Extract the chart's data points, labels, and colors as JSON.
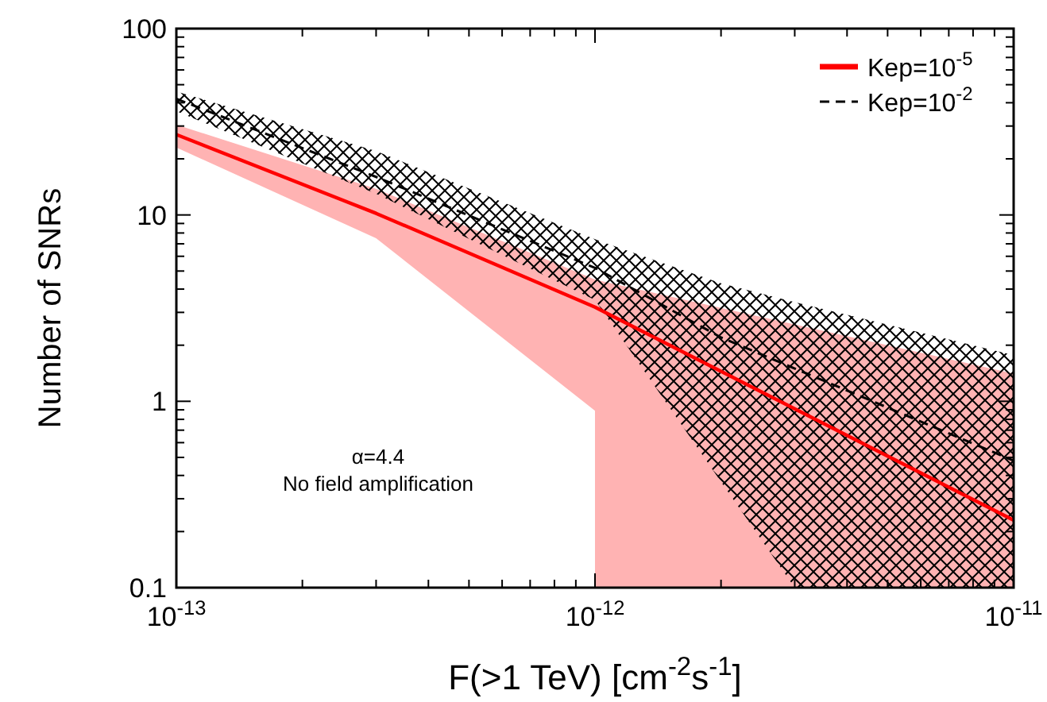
{
  "chart_data": {
    "type": "line",
    "xlabel": "F(>1 TeV) [cm$^{-2}$s$^{-1}$]",
    "ylabel": "Number of SNRs",
    "log": "xy",
    "grid": false,
    "legend": "top right",
    "xlim": [
      1e-13,
      1e-11
    ],
    "ylim": [
      0.1,
      100
    ],
    "xticks": [
      {
        "value": 1e-13,
        "label": "10$^{-13}$"
      },
      {
        "value": 2e-13,
        "label": null
      },
      {
        "value": 3e-13,
        "label": null
      },
      {
        "value": 4e-13,
        "label": null
      },
      {
        "value": 5e-13,
        "label": null
      },
      {
        "value": 6e-13,
        "label": null
      },
      {
        "value": 7e-13,
        "label": null
      },
      {
        "value": 8e-13,
        "label": null
      },
      {
        "value": 9e-13,
        "label": null
      },
      {
        "value": 1e-12,
        "label": "10$^{-12}$"
      },
      {
        "value": 2e-12,
        "label": null
      },
      {
        "value": 3e-12,
        "label": null
      },
      {
        "value": 4e-12,
        "label": null
      },
      {
        "value": 5e-12,
        "label": null
      },
      {
        "value": 6e-12,
        "label": null
      },
      {
        "value": 7e-12,
        "label": null
      },
      {
        "value": 8e-12,
        "label": null
      },
      {
        "value": 9e-12,
        "label": null
      },
      {
        "value": 1e-11,
        "label": "10$^{-11}$"
      }
    ],
    "yticks": [
      0.1,
      {
        "value": 0.2,
        "label": null
      },
      {
        "value": 0.3,
        "label": null
      },
      {
        "value": 0.4,
        "label": null
      },
      {
        "value": 0.5,
        "label": null
      },
      {
        "value": 0.6,
        "label": null
      },
      {
        "value": 0.7,
        "label": null
      },
      {
        "value": 0.8,
        "label": null
      },
      {
        "value": 0.9,
        "label": null
      },
      1,
      {
        "value": 2,
        "label": null
      },
      {
        "value": 3,
        "label": null
      },
      {
        "value": 4,
        "label": null
      },
      {
        "value": 5,
        "label": null
      },
      {
        "value": 6,
        "label": null
      },
      {
        "value": 7,
        "label": null
      },
      {
        "value": 8,
        "label": null
      },
      {
        "value": 9,
        "label": null
      },
      10,
      {
        "value": 20,
        "label": null
      },
      {
        "value": 30,
        "label": null
      },
      {
        "value": 40,
        "label": null
      },
      {
        "value": 50,
        "label": null
      },
      {
        "value": 60,
        "label": null
      },
      {
        "value": 70,
        "label": null
      },
      {
        "value": 80,
        "label": null
      },
      {
        "value": 90,
        "label": null
      },
      100
    ],
    "series": [
      {
        "name": "Kep=10$^{-5}$",
        "color": "#ff0000",
        "line_style": "solid",
        "x": [
          1e-13,
          3e-13,
          1e-12,
          1e-12,
          1e-11
        ],
        "values": [
          27,
          10.2,
          3.2,
          3.2,
          0.23
        ],
        "upper": [
          30.5,
          13.8,
          4.5,
          4.5,
          1.41
        ],
        "lower": [
          23,
          7.5,
          0.89,
          0.1,
          0.1
        ]
      },
      {
        "name": "Kep=10$^{-2}$",
        "color": "#000000",
        "line_style": "dashed",
        "x": [
          1e-13,
          3e-13,
          1e-12,
          2e-12,
          3e-12,
          1e-11
        ],
        "values": [
          42,
          16,
          5.2,
          2.2,
          1.5,
          0.48
        ],
        "upper": [
          46,
          22,
          7.4,
          4.3,
          3.4,
          1.77
        ],
        "lower": [
          36,
          13,
          3.5,
          0.37,
          0.1,
          0.1
        ]
      }
    ],
    "annotations": [
      "α=4.4",
      "No field amplification"
    ]
  }
}
